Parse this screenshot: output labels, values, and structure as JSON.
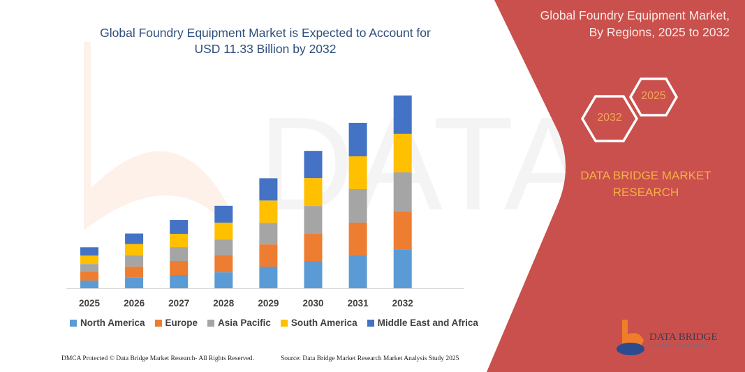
{
  "title": "Global Foundry Equipment Market is Expected to Account for USD 11.33 Billion by 2032",
  "title_lines": [
    "Global Foundry Equipment Market is Expected to Account for",
    "USD 11.33 Billion by 2032"
  ],
  "side_panel": {
    "title_lines": [
      "Global Foundry Equipment Market,",
      "By Regions, 2025 to 2032"
    ],
    "hex_start": "2025",
    "hex_end": "2032",
    "brand_lines": [
      "DATA BRIDGE MARKET",
      "RESEARCH"
    ],
    "logo_text": "DATA BRIDGE",
    "logo_subtext": "MARKET RESEARCH",
    "panel_color": "#c9504c"
  },
  "footer": {
    "left": "DMCA Protected © Data Bridge Market Research- All Rights Reserved.",
    "right": "Source: Data Bridge Market Research  Market Analysis Study 2025"
  },
  "chart_data": {
    "type": "bar",
    "stacked": true,
    "title": "Global Foundry Equipment Market is Expected to Account for USD 11.33 Billion by 2032",
    "xlabel": "",
    "ylabel": "",
    "y_axis_visible": false,
    "grid": false,
    "legend": "bottom",
    "categories": [
      "2025",
      "2026",
      "2027",
      "2028",
      "2029",
      "2030",
      "2031",
      "2032"
    ],
    "series": [
      {
        "name": "North America",
        "color": "#5b9bd5",
        "values": [
          0.45,
          0.62,
          0.78,
          0.94,
          1.27,
          1.6,
          1.93,
          2.26
        ]
      },
      {
        "name": "Europe",
        "color": "#ed7d31",
        "values": [
          0.53,
          0.66,
          0.82,
          0.99,
          1.31,
          1.6,
          1.93,
          2.26
        ]
      },
      {
        "name": "Asia Pacific",
        "color": "#a5a5a5",
        "values": [
          0.45,
          0.66,
          0.82,
          0.94,
          1.27,
          1.64,
          1.97,
          2.3
        ]
      },
      {
        "name": "South America",
        "color": "#ffc000",
        "values": [
          0.49,
          0.66,
          0.78,
          0.99,
          1.31,
          1.64,
          1.93,
          2.26
        ]
      },
      {
        "name": "Middle East and Africa",
        "color": "#4472c4",
        "values": [
          0.49,
          0.62,
          0.82,
          0.99,
          1.31,
          1.6,
          1.97,
          2.26
        ]
      }
    ]
  }
}
